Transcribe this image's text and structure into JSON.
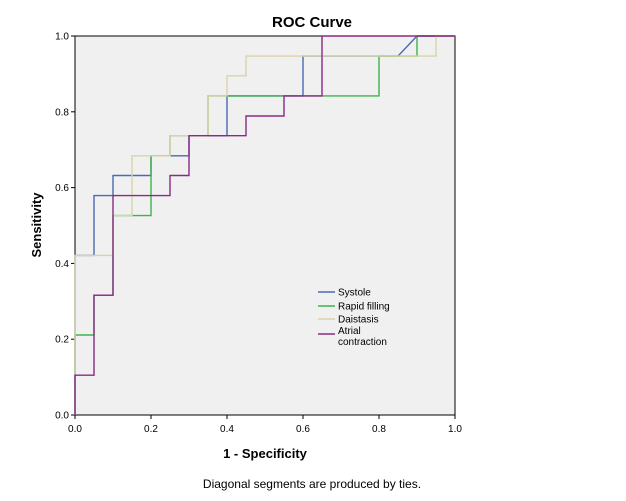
{
  "chart_data": {
    "type": "line",
    "title": "ROC Curve",
    "xlabel": "1 - Specificity",
    "ylabel": "Sensitivity",
    "xlim": [
      0,
      1
    ],
    "ylim": [
      0,
      1
    ],
    "xticks": [
      "0.0",
      "0.2",
      "0.4",
      "0.6",
      "0.8",
      "1.0"
    ],
    "yticks": [
      "0.0",
      "0.2",
      "0.4",
      "0.6",
      "0.8",
      "1.0"
    ],
    "legend_position": "lower-right",
    "footnote": "Diagonal segments are produced by ties.",
    "series": [
      {
        "name": "Systole",
        "color": "#4a6ab4",
        "points": [
          [
            0,
            0
          ],
          [
            0,
            0.421
          ],
          [
            0.05,
            0.421
          ],
          [
            0.05,
            0.579
          ],
          [
            0.1,
            0.579
          ],
          [
            0.1,
            0.632
          ],
          [
            0.2,
            0.632
          ],
          [
            0.2,
            0.684
          ],
          [
            0.3,
            0.684
          ],
          [
            0.3,
            0.737
          ],
          [
            0.4,
            0.737
          ],
          [
            0.4,
            0.842
          ],
          [
            0.6,
            0.842
          ],
          [
            0.6,
            0.947
          ],
          [
            0.85,
            0.947
          ],
          [
            0.9,
            1.0
          ],
          [
            1.0,
            1.0
          ]
        ]
      },
      {
        "name": "Rapid filling",
        "color": "#3fb24a",
        "points": [
          [
            0,
            0
          ],
          [
            0,
            0.211
          ],
          [
            0.05,
            0.211
          ],
          [
            0.05,
            0.316
          ],
          [
            0.1,
            0.316
          ],
          [
            0.1,
            0.526
          ],
          [
            0.2,
            0.526
          ],
          [
            0.2,
            0.684
          ],
          [
            0.25,
            0.684
          ],
          [
            0.25,
            0.737
          ],
          [
            0.35,
            0.737
          ],
          [
            0.35,
            0.842
          ],
          [
            0.8,
            0.842
          ],
          [
            0.8,
            0.947
          ],
          [
            0.9,
            0.947
          ],
          [
            0.9,
            1.0
          ],
          [
            1.0,
            1.0
          ]
        ]
      },
      {
        "name": "Daistasis",
        "color": "#d9d4a8",
        "points": [
          [
            0,
            0
          ],
          [
            0,
            0.421
          ],
          [
            0.1,
            0.421
          ],
          [
            0.1,
            0.526
          ],
          [
            0.15,
            0.526
          ],
          [
            0.15,
            0.684
          ],
          [
            0.25,
            0.684
          ],
          [
            0.25,
            0.737
          ],
          [
            0.35,
            0.737
          ],
          [
            0.35,
            0.842
          ],
          [
            0.4,
            0.842
          ],
          [
            0.4,
            0.895
          ],
          [
            0.45,
            0.895
          ],
          [
            0.45,
            0.947
          ],
          [
            0.95,
            0.947
          ],
          [
            0.95,
            1.0
          ],
          [
            1.0,
            1.0
          ]
        ]
      },
      {
        "name": "Atrial contraction",
        "legend_lines": [
          "Atrial",
          "contraction"
        ],
        "color": "#8a2a86",
        "points": [
          [
            0,
            0
          ],
          [
            0,
            0.105
          ],
          [
            0.05,
            0.105
          ],
          [
            0.05,
            0.316
          ],
          [
            0.1,
            0.316
          ],
          [
            0.1,
            0.579
          ],
          [
            0.25,
            0.579
          ],
          [
            0.25,
            0.632
          ],
          [
            0.3,
            0.632
          ],
          [
            0.3,
            0.737
          ],
          [
            0.45,
            0.737
          ],
          [
            0.45,
            0.789
          ],
          [
            0.55,
            0.789
          ],
          [
            0.55,
            0.842
          ],
          [
            0.65,
            0.842
          ],
          [
            0.65,
            1.0
          ],
          [
            1.0,
            1.0
          ]
        ]
      }
    ]
  }
}
